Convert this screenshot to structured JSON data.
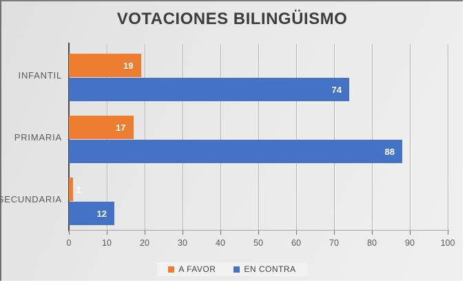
{
  "chart_data": {
    "type": "bar",
    "orientation": "horizontal",
    "title": "VOTACIONES BILINGÜISMO",
    "categories": [
      "INFANTIL",
      "PRIMARIA",
      "SECUNDARIA"
    ],
    "series": [
      {
        "name": "A FAVOR",
        "color": "#ED7D31",
        "values": [
          19,
          17,
          1
        ]
      },
      {
        "name": "EN CONTRA",
        "color": "#4472C4",
        "values": [
          74,
          88,
          12
        ]
      }
    ],
    "xlabel": "",
    "ylabel": "",
    "xlim": [
      0,
      100
    ],
    "x_ticks": [
      0,
      10,
      20,
      30,
      40,
      50,
      60,
      70,
      80,
      90,
      100
    ],
    "grid": true,
    "legend_position": "bottom",
    "data_labels": "inside-end-white"
  },
  "style": {
    "title_color": "#3d3d3d",
    "axis_text_color": "#595959",
    "gridline_color": "#b3b3b3",
    "axis_line_color": "#474747",
    "frame_border_color": "#6f6f6f",
    "legend_box_color": "#f2f2f2",
    "label_text_color": "#ffffff"
  }
}
